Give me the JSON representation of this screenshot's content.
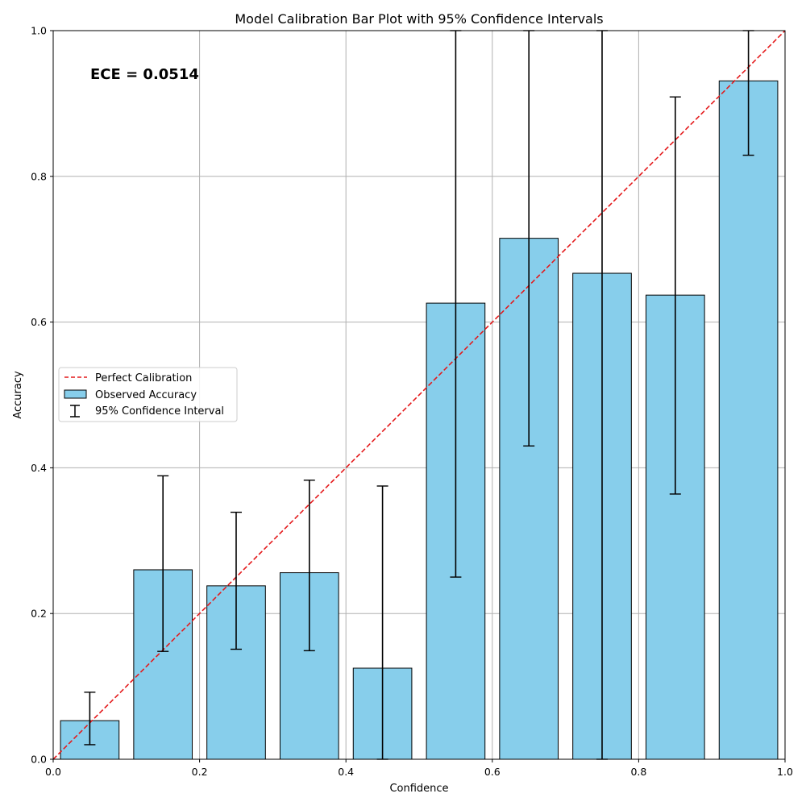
{
  "chart_data": {
    "type": "bar",
    "title": "Model Calibration Bar Plot with 95% Confidence Intervals",
    "xlabel": "Confidence",
    "ylabel": "Accuracy",
    "xlim": [
      0,
      1
    ],
    "ylim": [
      0,
      1
    ],
    "x_ticks": [
      "0.0",
      "0.2",
      "0.4",
      "0.6",
      "0.8",
      "1.0"
    ],
    "y_ticks": [
      "0.0",
      "0.2",
      "0.4",
      "0.6",
      "0.8",
      "1.0"
    ],
    "grid": true,
    "legend_position": "center-left",
    "annotation": "ECE = 0.0514",
    "bin_centers": [
      0.05,
      0.15,
      0.25,
      0.35,
      0.45,
      0.55,
      0.65,
      0.75,
      0.85,
      0.95
    ],
    "bar_width": 0.08,
    "series": [
      {
        "name": "Observed Accuracy",
        "values": [
          0.053,
          0.26,
          0.238,
          0.256,
          0.125,
          0.626,
          0.715,
          0.667,
          0.637,
          0.931
        ],
        "ci_lower": [
          0.02,
          0.148,
          0.151,
          0.149,
          0.0,
          0.25,
          0.43,
          0.0,
          0.364,
          0.829
        ],
        "ci_upper": [
          0.092,
          0.389,
          0.339,
          0.383,
          0.375,
          1.0,
          1.0,
          1.0,
          0.909,
          1.0
        ]
      }
    ],
    "reference_line": {
      "name": "Perfect Calibration",
      "x": [
        0,
        1
      ],
      "y": [
        0,
        1
      ]
    },
    "legend": [
      "Perfect Calibration",
      "Observed Accuracy",
      "95% Confidence Interval"
    ],
    "colors": {
      "bar": "#87ceeb",
      "bar_edge": "#000000",
      "reference": "#e41a1c",
      "grid": "#b0b0b0"
    }
  }
}
